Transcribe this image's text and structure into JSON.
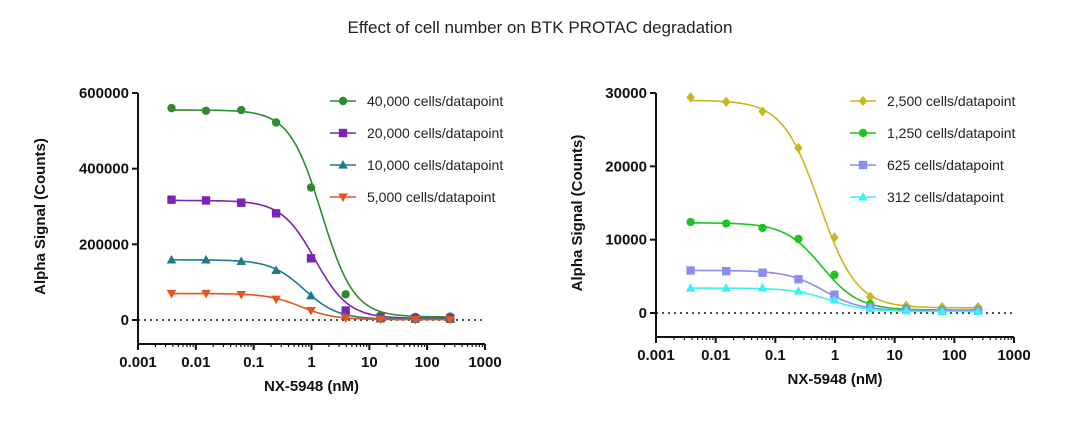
{
  "title": "Effect of cell number on BTK PROTAC degradation",
  "chart_data": [
    {
      "type": "scatter",
      "xscale": "log",
      "xlabel": "NX-5948 (nM)",
      "ylabel": "Alpha Signal (Counts)",
      "xlim": [
        0.001,
        1000
      ],
      "ylim": [
        0,
        600000
      ],
      "xticks": [
        "0.001",
        "0.01",
        "0.1",
        "1",
        "10",
        "100",
        "1000"
      ],
      "xtick_values": [
        0.001,
        0.01,
        0.1,
        1,
        10,
        100,
        1000
      ],
      "yticks": [
        "0",
        "200000",
        "400000",
        "600000"
      ],
      "ytick_values": [
        0,
        200000,
        400000,
        600000
      ],
      "x": [
        0.0038,
        0.015,
        0.061,
        0.244,
        0.98,
        3.9,
        15.6,
        62.5,
        250
      ],
      "legend_position": "top-right",
      "series": [
        {
          "name": "40,000 cells/datapoint",
          "color": "#2f8a2f",
          "marker": "circle",
          "values": [
            560000,
            553000,
            555000,
            522000,
            350000,
            68000,
            12000,
            8000,
            9000
          ],
          "fit": {
            "top": 555000,
            "bottom": 8000,
            "ec50": 1.5,
            "hill": 1.55
          }
        },
        {
          "name": "20,000 cells/datapoint",
          "color": "#7a24b8",
          "marker": "square",
          "values": [
            318000,
            316000,
            310000,
            282000,
            163000,
            25000,
            6000,
            4000,
            4000
          ],
          "fit": {
            "top": 316000,
            "bottom": 4000,
            "ec50": 1.15,
            "hill": 1.5
          }
        },
        {
          "name": "10,000 cells/datapoint",
          "color": "#1f7a8c",
          "marker": "triangle-up",
          "values": [
            159000,
            159000,
            155000,
            131000,
            64000,
            10000,
            3000,
            2000,
            2000
          ],
          "fit": {
            "top": 159000,
            "bottom": 2000,
            "ec50": 0.75,
            "hill": 1.5
          }
        },
        {
          "name": "5,000 cells/datapoint",
          "color": "#e8531f",
          "marker": "triangle-down",
          "values": [
            70000,
            70000,
            67000,
            55000,
            25000,
            5000,
            2000,
            1000,
            1000
          ],
          "fit": {
            "top": 70000,
            "bottom": 1000,
            "ec50": 0.65,
            "hill": 1.5
          }
        }
      ]
    },
    {
      "type": "scatter",
      "xscale": "log",
      "xlabel": "NX-5948 (nM)",
      "ylabel": "Alpha Signal (Counts)",
      "xlim": [
        0.001,
        1000
      ],
      "ylim": [
        0,
        30000
      ],
      "xticks": [
        "0.001",
        "0.01",
        "0.1",
        "1",
        "10",
        "100",
        "1000"
      ],
      "xtick_values": [
        0.001,
        0.01,
        0.1,
        1,
        10,
        100,
        1000
      ],
      "yticks": [
        "0",
        "10000",
        "20000",
        "30000"
      ],
      "ytick_values": [
        0,
        10000,
        20000,
        30000
      ],
      "x": [
        0.0038,
        0.015,
        0.061,
        0.244,
        0.98,
        3.9,
        15.6,
        62.5,
        250
      ],
      "legend_position": "top-right",
      "series": [
        {
          "name": "2,500 cells/datapoint",
          "color": "#c9b81a",
          "marker": "diamond",
          "values": [
            29400,
            28800,
            27500,
            22500,
            10300,
            2200,
            1000,
            800,
            800
          ],
          "fit": {
            "top": 29000,
            "bottom": 700,
            "ec50": 0.55,
            "hill": 1.4
          }
        },
        {
          "name": "1,250 cells/datapoint",
          "color": "#1fc41f",
          "marker": "circle",
          "values": [
            12400,
            12200,
            11600,
            10100,
            5200,
            1200,
            600,
            400,
            400
          ],
          "fit": {
            "top": 12300,
            "bottom": 400,
            "ec50": 0.6,
            "hill": 1.4
          }
        },
        {
          "name": "625 cells/datapoint",
          "color": "#8c8cf0",
          "marker": "square",
          "values": [
            5800,
            5700,
            5500,
            4600,
            2500,
            800,
            500,
            300,
            300
          ],
          "fit": {
            "top": 5800,
            "bottom": 300,
            "ec50": 0.65,
            "hill": 1.4
          }
        },
        {
          "name": "312 cells/datapoint",
          "color": "#3ff0f0",
          "marker": "triangle-up",
          "values": [
            3400,
            3400,
            3400,
            3000,
            1800,
            600,
            300,
            200,
            200
          ],
          "fit": {
            "top": 3400,
            "bottom": 200,
            "ec50": 0.8,
            "hill": 1.4
          }
        }
      ]
    }
  ]
}
